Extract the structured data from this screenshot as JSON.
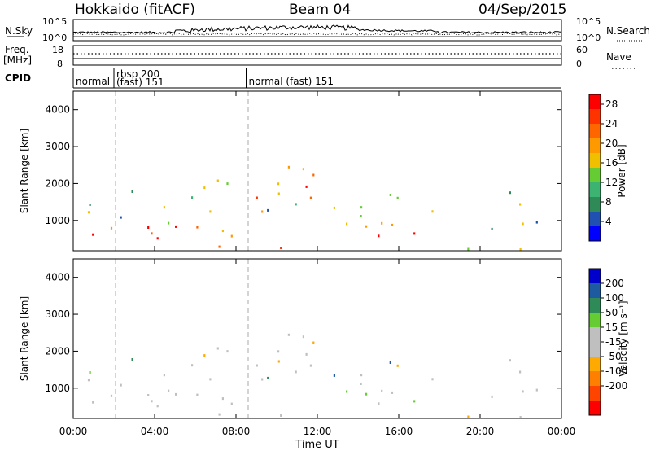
{
  "header": {
    "station": "Hokkaido (fitACF)",
    "beam": "Beam 04",
    "date": "04/Sep/2015"
  },
  "noise_panel": {
    "left_label": "N.Sky",
    "left_ticks": [
      "10^5",
      "10^0"
    ],
    "right_label": "N.Search",
    "right_ticks": [
      "10^5",
      "10^0"
    ]
  },
  "freq_panel": {
    "left_label_1": "Freq.",
    "left_label_2": "[MHz]",
    "left_ticks": [
      "18",
      "8"
    ],
    "right_label": "Nave",
    "right_ticks": [
      "60",
      "0"
    ]
  },
  "cpid": {
    "label": "CPID",
    "segments": [
      {
        "start_hour": 0.0,
        "text": "normal",
        "text2": ""
      },
      {
        "start_hour": 2.0,
        "text": "rbsp 200",
        "text2": "(fast) 151"
      },
      {
        "start_hour": 8.5,
        "text": "normal (fast)  151",
        "text2": ""
      }
    ]
  },
  "colors": {
    "power_scale": [
      "#0000ff",
      "#2050b0",
      "#2e8b57",
      "#3cb371",
      "#66cc33",
      "#f0c000",
      "#ff9900",
      "#ff6600",
      "#ff3300",
      "#ff0000"
    ],
    "velocity_scale": [
      "#0000cc",
      "#1e5aa0",
      "#2e8b57",
      "#66cc33",
      "#bfbfbf",
      "#bfbfbf",
      "#ffaa00",
      "#ff7f00",
      "#ff4400",
      "#ff0000"
    ],
    "ground_scatter": "#bfbfbf"
  },
  "chart_data": [
    {
      "type": "heatmap",
      "name": "power",
      "ylabel": "Slant Range [km]",
      "xlabel": "Time UT",
      "xlim_hours": [
        0,
        24
      ],
      "ylim_km": [
        180,
        4500
      ],
      "yticks": [
        "1000",
        "2000",
        "3000",
        "4000"
      ],
      "xticks": [
        "00:00",
        "04:00",
        "08:00",
        "12:00",
        "16:00",
        "20:00",
        "00:00"
      ],
      "colorbar_label": "Power [dB]",
      "colorbar_ticks": [
        "4",
        "8",
        "12",
        "16",
        "20",
        "24",
        "28"
      ],
      "colorbar_range": [
        0,
        30
      ]
    },
    {
      "type": "heatmap",
      "name": "velocity",
      "ylabel": "Slant Range [km]",
      "xlabel": "Time UT",
      "xlim_hours": [
        0,
        24
      ],
      "ylim_km": [
        180,
        4500
      ],
      "yticks": [
        "1000",
        "2000",
        "3000",
        "4000"
      ],
      "xticks": [
        "00:00",
        "04:00",
        "08:00",
        "12:00",
        "16:00",
        "20:00",
        "00:00"
      ],
      "colorbar_label": "Velocity [m s⁻¹]",
      "colorbar_ticks": [
        "200",
        "100",
        "50",
        "15",
        "-15",
        "-50",
        "-100",
        "-200"
      ],
      "colorbar_range": [
        -250,
        250
      ]
    }
  ],
  "x_axis_title": "Time UT"
}
